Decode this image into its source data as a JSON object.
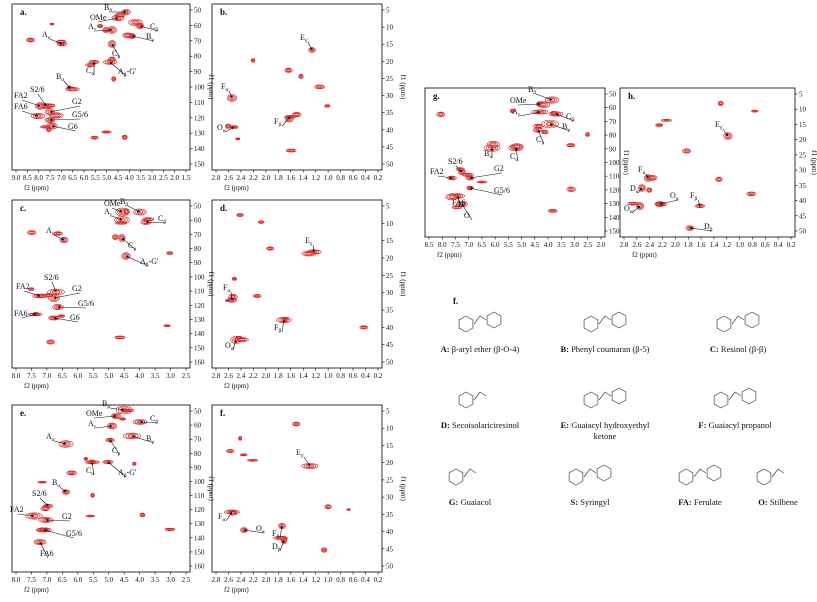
{
  "panels": [
    {
      "label": "a.",
      "xlabel": "f2 (ppm)",
      "ylabel": "f1 (ppm)",
      "xticks": [
        "9.0",
        "8.5",
        "8.0",
        "7.5",
        "7.0",
        "6.5",
        "6.0",
        "5.5",
        "5.0",
        "4.5",
        "4.0",
        "3.5",
        "3.0",
        "2.5",
        "2.0",
        "1.5"
      ],
      "yticks": [
        "50",
        "60",
        "70",
        "80",
        "90",
        "100",
        "110",
        "120",
        "130",
        "140",
        "150"
      ],
      "annotations": [
        {
          "text": "OMe"
        },
        {
          "text": "B",
          "sub": "β"
        },
        {
          "text": "A",
          "sub": "γ"
        },
        {
          "text": "C",
          "sub": "β"
        },
        {
          "text": "B",
          "sub": "γ"
        },
        {
          "text": "A",
          "sub": "α"
        },
        {
          "text": "C",
          "sub": "γ"
        },
        {
          "text": "C",
          "sub": "α"
        },
        {
          "text": "A",
          "sub": "β",
          "post": "-G'"
        },
        {
          "text": "B",
          "sub": "α"
        },
        {
          "text": "S2/6"
        },
        {
          "text": "FA2"
        },
        {
          "text": "G2"
        },
        {
          "text": "FA6"
        },
        {
          "text": "G5/6"
        },
        {
          "text": "G6"
        }
      ]
    },
    {
      "label": "b.",
      "xlabel": "f2 (ppm)",
      "ylabel": "f1 (ppm)",
      "xticks": [
        "2.8",
        "2.6",
        "2.4",
        "2.2",
        "2.0",
        "1.8",
        "1.6",
        "1.4",
        "1.2",
        "1.0",
        "0.8",
        "0.6",
        "0.4",
        "0.2"
      ],
      "yticks": [
        "5",
        "10",
        "15",
        "20",
        "25",
        "30",
        "35",
        "40",
        "45",
        "50"
      ],
      "annotations": [
        {
          "text": "E",
          "sub": "γ'"
        },
        {
          "text": "F",
          "sub": "α"
        },
        {
          "text": "O",
          "sub": "α'"
        },
        {
          "text": "F",
          "sub": "β"
        }
      ]
    },
    {
      "label": "c.",
      "xlabel": "f2 (ppm)",
      "ylabel": "f1 (ppm)",
      "xticks": [
        "8.0",
        "7.5",
        "7.0",
        "6.5",
        "6.0",
        "5.5",
        "5.0",
        "4.5",
        "4.0",
        "3.5",
        "3.0",
        "2.5"
      ],
      "yticks": [
        "50",
        "60",
        "70",
        "80",
        "90",
        "100",
        "110",
        "120",
        "130",
        "140",
        "150",
        "160"
      ],
      "annotations": [
        {
          "text": "OMe"
        },
        {
          "text": "B",
          "sub": "β"
        },
        {
          "text": "A",
          "sub": "γ"
        },
        {
          "text": "C",
          "sub": "β"
        },
        {
          "text": "A",
          "sub": "α"
        },
        {
          "text": "C",
          "sub": "γ"
        },
        {
          "text": "A",
          "sub": "β",
          "post": "-G'"
        },
        {
          "text": "S2/6"
        },
        {
          "text": "FA2"
        },
        {
          "text": "G2"
        },
        {
          "text": "G5/6"
        },
        {
          "text": "FA6"
        },
        {
          "text": "G6"
        }
      ]
    },
    {
      "label": "d.",
      "xlabel": "f2 (ppm)",
      "ylabel": "f1 (ppm)",
      "xticks": [
        "2.8",
        "2.6",
        "2.4",
        "2.2",
        "2.0",
        "1.8",
        "1.6",
        "1.4",
        "1.2",
        "1.0",
        "0.8",
        "0.6",
        "0.4",
        "0.2"
      ],
      "yticks": [
        "5",
        "10",
        "15",
        "20",
        "25",
        "30",
        "35",
        "40",
        "45",
        "50"
      ],
      "annotations": [
        {
          "text": "E",
          "sub": "γ"
        },
        {
          "text": "F",
          "sub": "α"
        },
        {
          "text": "F",
          "sub": "β"
        },
        {
          "text": "O",
          "sub": "α'"
        }
      ]
    },
    {
      "label": "e.",
      "xlabel": "f2 (ppm)",
      "ylabel": "f1 (ppm)",
      "xticks": [
        "8.0",
        "7.5",
        "7.0",
        "6.5",
        "6.0",
        "5.5",
        "5.0",
        "4.5",
        "4.0",
        "3.5",
        "3.0",
        "2.5"
      ],
      "yticks": [
        "50",
        "60",
        "70",
        "80",
        "90",
        "100",
        "110",
        "120",
        "130",
        "140",
        "150",
        "160"
      ],
      "annotations": [
        {
          "text": "OMe"
        },
        {
          "text": "B",
          "sub": "β"
        },
        {
          "text": "A",
          "sub": "γ"
        },
        {
          "text": "C",
          "sub": "β"
        },
        {
          "text": "B",
          "sub": "γ"
        },
        {
          "text": "A",
          "sub": "α"
        },
        {
          "text": "C",
          "sub": "γ"
        },
        {
          "text": "C",
          "sub": "α"
        },
        {
          "text": "A",
          "sub": "β",
          "post": "-G'"
        },
        {
          "text": "B",
          "sub": "α"
        },
        {
          "text": "S2/6"
        },
        {
          "text": "FA2"
        },
        {
          "text": "G2"
        },
        {
          "text": "G5/6"
        },
        {
          "text": "FA6"
        }
      ]
    },
    {
      "label": "f.",
      "xlabel": "f2 (ppm)",
      "ylabel": "f1 (ppm)",
      "xticks": [
        "2.8",
        "2.6",
        "2.4",
        "2.2",
        "2.0",
        "1.8",
        "1.6",
        "1.4",
        "1.2",
        "1.0",
        "0.8",
        "0.6",
        "0.4",
        "0.2"
      ],
      "yticks": [
        "5",
        "10",
        "15",
        "20",
        "25",
        "30",
        "35",
        "40",
        "45",
        "50"
      ],
      "annotations": [
        {
          "text": "E",
          "sub": "γ'"
        },
        {
          "text": "F",
          "sub": "α"
        },
        {
          "text": "O",
          "sub": "α"
        },
        {
          "text": "F",
          "sub": "β"
        },
        {
          "text": "D",
          "sub": "β"
        }
      ]
    },
    {
      "label": "g.",
      "xlabel": "f2 (ppm)",
      "ylabel": "f1 (ppm)",
      "xticks": [
        "8.5",
        "8.0",
        "7.5",
        "7.0",
        "6.5",
        "6.0",
        "5.5",
        "5.0",
        "4.5",
        "4.0",
        "3.5",
        "3.0",
        "2.5",
        "2.0"
      ],
      "yticks": [
        "50",
        "60",
        "70",
        "80",
        "90",
        "100",
        "110",
        "120",
        "130",
        "140",
        "150"
      ],
      "annotations": [
        {
          "text": "B",
          "sub": "β"
        },
        {
          "text": "OMe"
        },
        {
          "text": "A",
          "sub": "γ"
        },
        {
          "text": "C",
          "sub": "β"
        },
        {
          "text": "B",
          "sub": "γ"
        },
        {
          "text": "C",
          "sub": "γ"
        },
        {
          "text": "C",
          "sub": "α"
        },
        {
          "text": "B",
          "sub": "α"
        },
        {
          "text": "S2/6"
        },
        {
          "text": "FA2"
        },
        {
          "text": "G2"
        },
        {
          "text": "G5/6"
        },
        {
          "text": "FA6"
        },
        {
          "text": "O"
        }
      ]
    },
    {
      "label": "h.",
      "xlabel": "f2 (ppm)",
      "ylabel": "f1 (ppm)",
      "xticks": [
        "2.8",
        "2.6",
        "2.4",
        "2.2",
        "2.0",
        "1.8",
        "1.6",
        "1.4",
        "1.2",
        "1.0",
        "0.8",
        "0.6",
        "0.4",
        "0.2"
      ],
      "yticks": [
        "5",
        "10",
        "15",
        "20",
        "25",
        "30",
        "35",
        "40",
        "45",
        "50"
      ],
      "annotations": [
        {
          "text": "E",
          "sub": "γ'"
        },
        {
          "text": "F",
          "sub": "α"
        },
        {
          "text": "D",
          "sub": "α"
        },
        {
          "text": "O",
          "sub": "α'"
        },
        {
          "text": "O",
          "sub": "α"
        },
        {
          "text": "F",
          "sub": "β"
        },
        {
          "text": "D",
          "sub": "β"
        }
      ]
    }
  ],
  "structures": {
    "label": "f.",
    "items": [
      {
        "key": "A:",
        "name": [
          "β-aryl ether (β-O-4)"
        ]
      },
      {
        "key": "B:",
        "name": [
          "Phenyl coumaran (β-5)"
        ]
      },
      {
        "key": "C:",
        "name": [
          "Resinol (β-β)"
        ]
      },
      {
        "key": "D:",
        "name": [
          "Secoisolariciresinol"
        ]
      },
      {
        "key": "E:",
        "name": [
          "Guaiacyl hydroxyethyl",
          "ketone"
        ]
      },
      {
        "key": "F:",
        "name": [
          "Guaiacyl propanol"
        ]
      },
      {
        "key": "G:",
        "name": [
          "Guaiacol"
        ]
      },
      {
        "key": "S:",
        "name": [
          "Syringyl"
        ]
      },
      {
        "key": "FA:",
        "name": [
          "Ferulate"
        ]
      },
      {
        "key": "O:",
        "name": [
          "Stilbene"
        ]
      }
    ]
  }
}
